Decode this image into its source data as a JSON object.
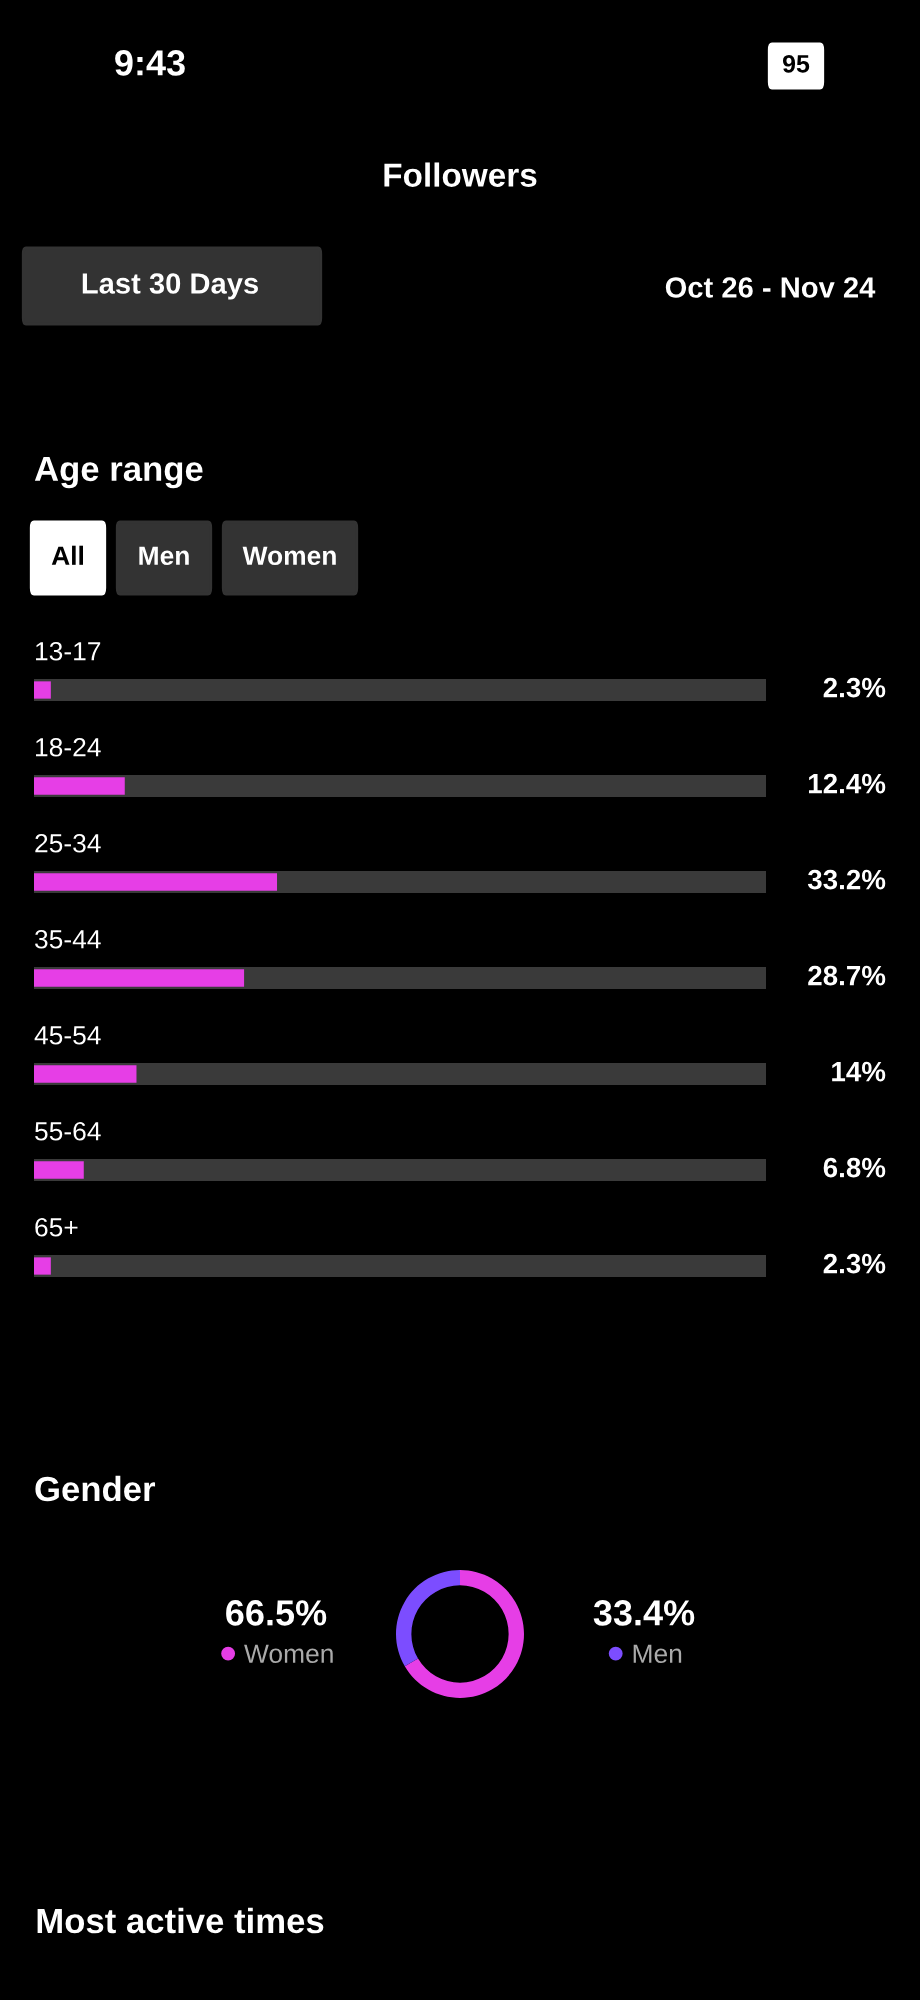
{
  "chart_data": [
    {
      "type": "bar",
      "orientation": "horizontal",
      "title": "Age range",
      "categories": [
        "13-17",
        "18-24",
        "25-34",
        "35-44",
        "45-54",
        "55-64",
        "65+"
      ],
      "values": [
        2.3,
        12.4,
        33.2,
        28.7,
        14,
        6.8,
        2.3
      ],
      "value_labels": [
        "2.3%",
        "12.4%",
        "33.2%",
        "28.7%",
        "14%",
        "6.8%",
        "2.3%"
      ],
      "color": "#e63ee6",
      "xlim": [
        0,
        100
      ],
      "tick_labels": false,
      "annotations": [
        "9:43",
        "95",
        "Followers",
        "Last 30 Days",
        "Oct 26 - Nov 24",
        "All",
        "Men",
        "Women",
        "Most active times"
      ]
    },
    {
      "type": "donut",
      "title": "Gender",
      "categories": [
        "Women",
        "Men"
      ],
      "values": [
        66.5,
        33.4
      ],
      "value_labels": [
        "66.5%",
        "33.4%"
      ],
      "colors": [
        "#e63ee6",
        "#7c4dff"
      ],
      "legend": "bottom"
    }
  ]
}
